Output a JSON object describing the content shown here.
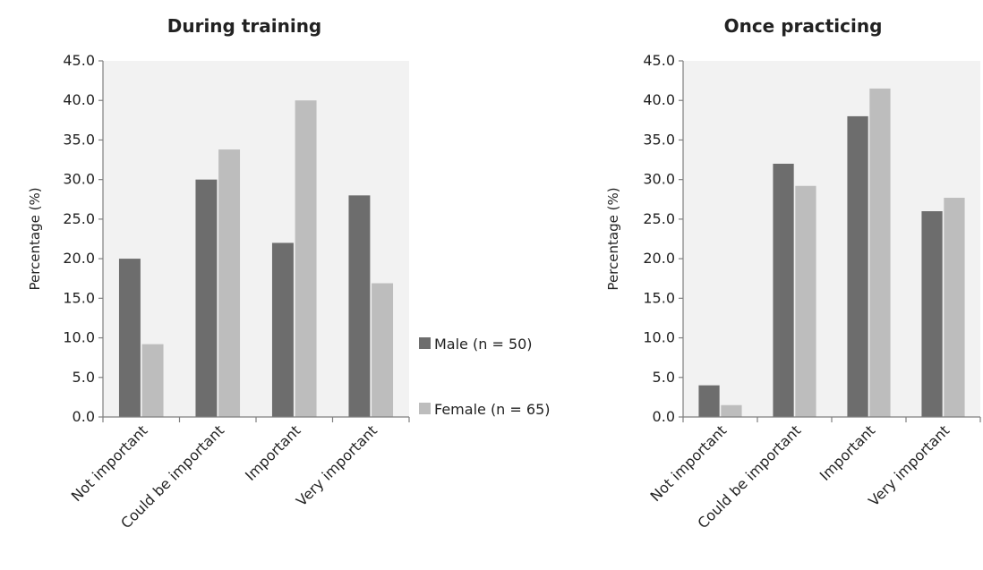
{
  "chart_data": [
    {
      "type": "bar",
      "title": "During training",
      "xlabel": "",
      "ylabel": "Percentage (%)",
      "ylim": [
        0,
        45
      ],
      "yticks": [
        "0.0",
        "5.0",
        "10.0",
        "15.0",
        "20.0",
        "25.0",
        "30.0",
        "35.0",
        "40.0",
        "45.0"
      ],
      "categories": [
        "Not important",
        "Could be important",
        "Important",
        "Very important"
      ],
      "series": [
        {
          "name": "Male (n = 50)",
          "color": "#6d6d6d",
          "values": [
            20.0,
            30.0,
            22.0,
            28.0
          ]
        },
        {
          "name": "Female (n = 65)",
          "color": "#bdbdbd",
          "values": [
            9.2,
            33.8,
            40.0,
            16.9
          ]
        }
      ],
      "grid": false,
      "plot_background": "#f2f2f2"
    },
    {
      "type": "bar",
      "title": "Once practicing",
      "xlabel": "",
      "ylabel": "Percentage (%)",
      "ylim": [
        0,
        45
      ],
      "yticks": [
        "0.0",
        "5.0",
        "10.0",
        "15.0",
        "20.0",
        "25.0",
        "30.0",
        "35.0",
        "40.0",
        "45.0"
      ],
      "categories": [
        "Not important",
        "Could be important",
        "Important",
        "Very important"
      ],
      "series": [
        {
          "name": "Male (n = 50)",
          "color": "#6d6d6d",
          "values": [
            4.0,
            32.0,
            38.0,
            26.0
          ]
        },
        {
          "name": "Female (n = 65)",
          "color": "#bdbdbd",
          "values": [
            1.5,
            29.2,
            41.5,
            27.7
          ]
        }
      ],
      "grid": false,
      "plot_background": "#f2f2f2"
    }
  ],
  "legend": {
    "placement": "center",
    "items": [
      {
        "label": "Male (n = 50)",
        "color": "#6d6d6d"
      },
      {
        "label": "Female (n = 65)",
        "color": "#bdbdbd"
      }
    ]
  }
}
